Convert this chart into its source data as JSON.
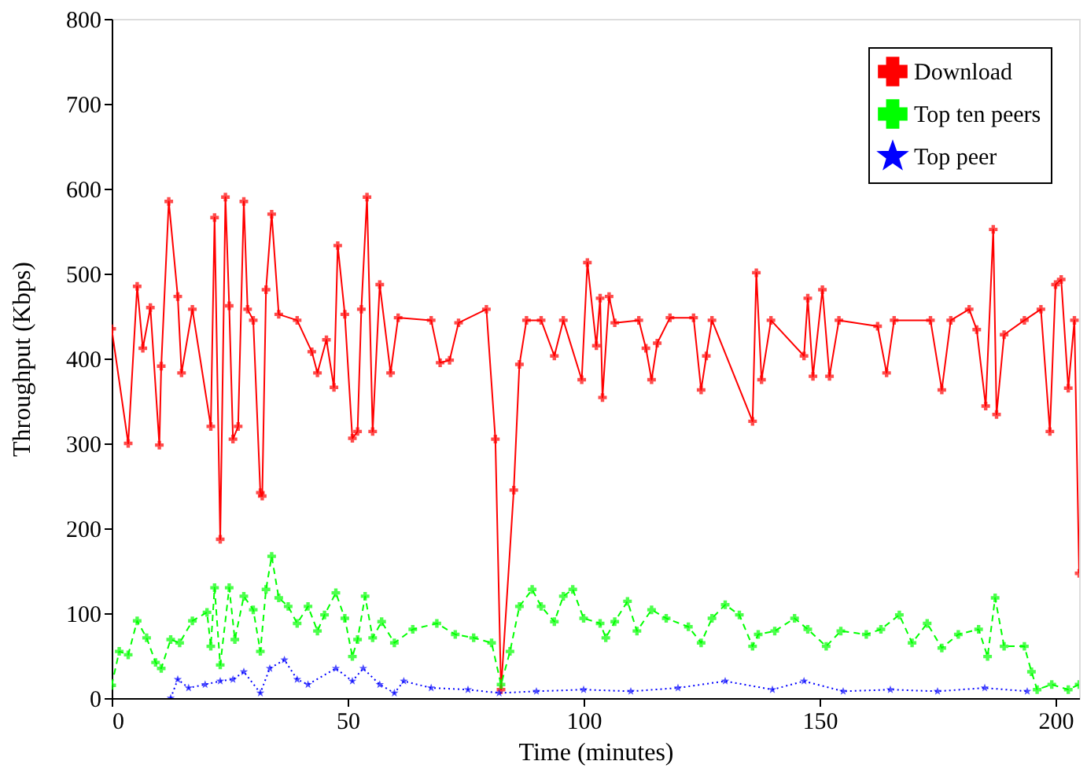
{
  "chart_data": {
    "type": "line",
    "xlabel": "Time (minutes)",
    "ylabel": "Throughput (Kbps)",
    "xlim": [
      0,
      205
    ],
    "ylim": [
      0,
      800
    ],
    "xticks": [
      0,
      50,
      100,
      150,
      200
    ],
    "yticks": [
      0,
      100,
      200,
      300,
      400,
      500,
      600,
      700,
      800
    ],
    "grid": false,
    "legend": "top right",
    "series": [
      {
        "name": "Download",
        "color": "#ff0000",
        "marker": "cross",
        "line_style": "solid",
        "x": [
          0,
          3.5,
          5.4,
          6.6,
          8.2,
          10.1,
          10.5,
          12.1,
          14,
          14.8,
          17.1,
          21,
          21.8,
          23,
          24.1,
          24.9,
          25.7,
          26.8,
          28,
          28.8,
          30,
          31.5,
          31.9,
          32.7,
          33.9,
          35.4,
          39.3,
          42.4,
          43.6,
          45.5,
          47.1,
          47.9,
          49.4,
          51,
          52.1,
          52.9,
          54.1,
          55.3,
          56.8,
          59.1,
          60.7,
          67.7,
          69.6,
          71.6,
          73.5,
          79.4,
          81.3,
          82.5,
          85.2,
          86.4,
          87.9,
          91,
          93.8,
          95.7,
          99.6,
          100.8,
          102.7,
          103.5,
          104,
          105.4,
          106.6,
          111.7,
          113.2,
          114.4,
          115.6,
          118.3,
          123.3,
          124.9,
          126,
          127.2,
          135.8,
          136.6,
          137.7,
          139.7,
          146.7,
          147.5,
          148.6,
          150.6,
          152.1,
          154.1,
          162.3,
          164.2,
          165.8,
          173.5,
          175.9,
          177.8,
          181.7,
          183.3,
          185.2,
          186.8,
          187.5,
          189.1,
          193.4,
          196.9,
          198.8,
          200,
          201.2,
          202.7,
          204,
          205
        ],
        "values": [
          435,
          300,
          485,
          412,
          460,
          298,
          391,
          585,
          473,
          383,
          458,
          320,
          566,
          187,
          590,
          462,
          305,
          320,
          585,
          458,
          445,
          242,
          238,
          481,
          570,
          452,
          445,
          408,
          383,
          422,
          366,
          533,
          452,
          306,
          314,
          458,
          590,
          314,
          487,
          383,
          448,
          445,
          395,
          398,
          442,
          458,
          305,
          10,
          245,
          393,
          445,
          445,
          403,
          445,
          375,
          513,
          415,
          471,
          354,
          473,
          442,
          445,
          412,
          375,
          418,
          448,
          448,
          363,
          403,
          445,
          326,
          501,
          375,
          445,
          403,
          471,
          379,
          481,
          379,
          445,
          438,
          383,
          445,
          445,
          363,
          445,
          458,
          434,
          344,
          552,
          334,
          428,
          445,
          458,
          314,
          487,
          493,
          365,
          445,
          147
        ]
      },
      {
        "name": "Top ten peers",
        "color": "#00ff00",
        "marker": "cross",
        "line_style": "dashed",
        "x": [
          0,
          1.6,
          3.5,
          5.4,
          7.4,
          9.3,
          10.5,
          12.5,
          14.4,
          17.1,
          20.2,
          21,
          21.8,
          23,
          24.9,
          26.1,
          28,
          30,
          31.5,
          32.7,
          33.9,
          35.4,
          37.4,
          39.3,
          41.6,
          43.6,
          45.1,
          47.5,
          49.4,
          51,
          52.1,
          53.7,
          55.3,
          57.2,
          59.9,
          63.8,
          68.9,
          72.8,
          76.7,
          80.5,
          82.5,
          84.4,
          86.4,
          89.1,
          91,
          93.8,
          95.7,
          97.7,
          100,
          103.5,
          104.7,
          106.6,
          109.3,
          111.3,
          114.4,
          117.5,
          122.2,
          124.9,
          127.2,
          130,
          133,
          135.8,
          137,
          140.5,
          144.7,
          147.5,
          151.4,
          154.5,
          159.9,
          163,
          166.9,
          169.6,
          172.8,
          175.9,
          179.4,
          183.7,
          185.6,
          187.2,
          189.1,
          193.4,
          194.9,
          196.1,
          199.2,
          202.7,
          205
        ],
        "values": [
          15,
          55,
          51,
          91,
          71,
          42,
          35,
          69,
          65,
          91,
          101,
          61,
          130,
          39,
          130,
          69,
          120,
          104,
          55,
          128,
          167,
          118,
          108,
          88,
          108,
          79,
          98,
          124,
          94,
          49,
          69,
          120,
          71,
          90,
          65,
          81,
          88,
          75,
          71,
          65,
          16,
          55,
          108,
          128,
          108,
          90,
          120,
          128,
          94,
          88,
          71,
          90,
          114,
          79,
          104,
          94,
          84,
          65,
          94,
          110,
          98,
          61,
          75,
          79,
          94,
          81,
          61,
          79,
          75,
          81,
          98,
          65,
          88,
          59,
          75,
          81,
          49,
          118,
          61,
          61,
          31,
          10,
          16,
          10,
          16
        ]
      },
      {
        "name": "Top peer",
        "color": "#0000ff",
        "marker": "star",
        "line_style": "dotted",
        "x": [
          12.5,
          14,
          16.3,
          19.8,
          23,
          25.7,
          28,
          31.5,
          33.5,
          36.6,
          39.3,
          41.6,
          47.5,
          51,
          53.3,
          56.8,
          59.9,
          61.9,
          67.7,
          75.5,
          82.1,
          90,
          100,
          110,
          120,
          130,
          140,
          146.7,
          155,
          165,
          175,
          185,
          194
        ],
        "values": [
          0,
          22,
          12,
          16,
          20,
          22,
          31,
          6,
          35,
          45,
          22,
          16,
          35,
          20,
          35,
          16,
          6,
          20,
          12,
          10,
          6,
          8,
          10,
          8,
          12,
          20,
          10,
          20,
          8,
          10,
          8,
          12,
          8
        ]
      }
    ]
  }
}
